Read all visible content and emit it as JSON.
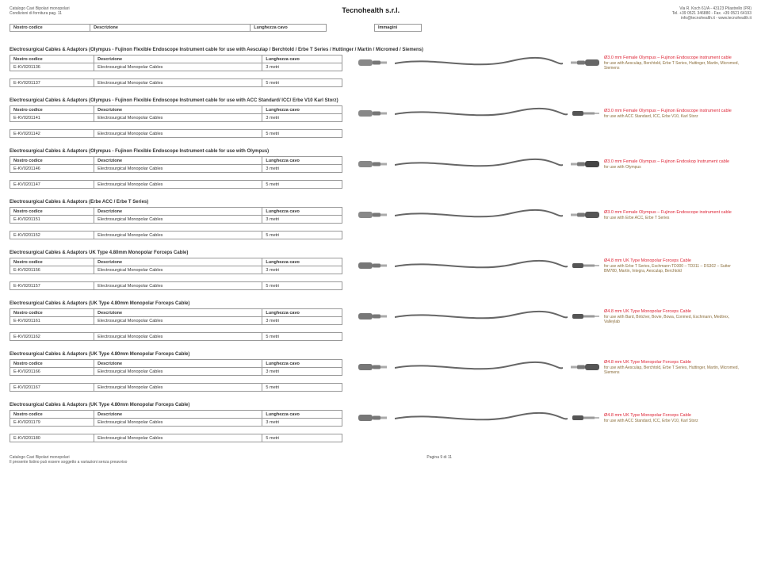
{
  "header": {
    "left_line1": "Catalogo Cavi Bipolari monopolari",
    "left_line2": "Condizioni di fornitura pag. 11",
    "center": "Tecnohealth s.r.l.",
    "right_line1": "Via R. Koch 61/A - 43123 Pilastrello (PR)",
    "right_line2": "Tel. +39 0521 346880 - Fax. +39 0521 64193",
    "right_line3": "info@tecnohealth.it - www.tecnohealth.it"
  },
  "top_table": {
    "col1": "Nostro codice",
    "col2": "Descrizione",
    "col3": "Lunghezza cavo",
    "col4": "Immagini"
  },
  "common": {
    "th_code": "Nostro codice",
    "th_desc": "Descrizione",
    "th_len": "Lunghezza cavo",
    "desc_row": "Electrosurgical Monopolar Cables",
    "len3": "3 metri",
    "len5": "5 metri"
  },
  "sections": [
    {
      "title": "Electrosurgical Cables & Adaptors (Olympus - Fujinon Flexible Endoscope Instrument cable for use with Aesculap / Berchtold / Erbe T Series / Huttinger / Martin / Micromed / Siemens)",
      "rows": [
        {
          "code": "E-KV0201136"
        },
        {
          "code": "E-KV0201137"
        }
      ],
      "caption_title": "Ø3.0 mm Female Olympus – Fujinon Endoscope instrument cable",
      "caption_sub": "for use with Aesculap, Berchtold, Erbe T Series, Huttinger, Martin, Micromed, Siemens",
      "left_color": "#888",
      "right_color": "#666",
      "right_shape": "plug"
    },
    {
      "title": "Electrosurgical Cables & Adaptors (Olympus - Fujinon Flexible Endoscope Instrument cable for use with ACC Standard/ ICC/ Erbe V10 Karl Storz)",
      "rows": [
        {
          "code": "E-KV0201141"
        },
        {
          "code": "E-KV0201142"
        }
      ],
      "caption_title": "Ø3.0 mm Female Olympus – Fujinon Endoscope instrument cable",
      "caption_sub": "for use with ACC Standard, ICC, Erbe V10, Karl Storz",
      "left_color": "#888",
      "right_color": "#555",
      "right_shape": "pin"
    },
    {
      "title": "Electrosurgical Cables & Adaptors (Olympus - Fujinon Flexible Endoscope Instrument cable for use with Olympus)",
      "rows": [
        {
          "code": "E-KV0201146"
        },
        {
          "code": "E-KV0201147"
        }
      ],
      "caption_title": "Ø3.0 mm Female Olympus – Fujinon Endoskop Instrument cable",
      "caption_sub": "for use with Olympus",
      "left_color": "#888",
      "right_color": "#444",
      "right_shape": "plug"
    },
    {
      "title": "Electrosurgical Cables & Adaptors (Erbe ACC / Erbe T Series)",
      "rows": [
        {
          "code": "E-KV0201151"
        },
        {
          "code": "E-KV0201152"
        }
      ],
      "caption_title": "Ø3.0 mm Female Olympus – Fujinon Endoscope instrument cable",
      "caption_sub": "for use with Erbe ACC, Erbe T Series",
      "left_color": "#888",
      "right_color": "#555",
      "right_shape": "plug"
    },
    {
      "title": "Electrosurgical Cables & Adaptors UK Type 4.80mm Monopolar Forceps Cable)",
      "rows": [
        {
          "code": "E-KV0201156"
        },
        {
          "code": "E-KV0201157"
        }
      ],
      "caption_title": "Ø4.8 mm UK Type Monopolar Forceps Cable",
      "caption_sub": "for use with Erbe T Series, Eschmann TD300 – TD311 – DS302 – Sutter BM780, Martin, Integra, Aesculap, Berchtold",
      "left_color": "#777",
      "right_color": "#555",
      "right_shape": "pin"
    },
    {
      "title": "Electrosurgical Cables & Adaptors (UK Type 4.80mm Monopolar Forceps Cable)",
      "rows": [
        {
          "code": "E-KV0201161"
        },
        {
          "code": "E-KV0201162"
        }
      ],
      "caption_title": "Ø4.8 mm UK Type Monopolar Forceps Cable",
      "caption_sub": "for use with Bard, Birtcher, Bovie, Bowa, Conmed, Eschmann, Medtrex, Valleylab",
      "left_color": "#777",
      "right_color": "#555",
      "right_shape": "pin"
    },
    {
      "title": "Electrosurgical Cables & Adaptors (UK Type 4.80mm Monopolar Forceps Cable)",
      "rows": [
        {
          "code": "E-KV0201166"
        },
        {
          "code": "E-KV0201167"
        }
      ],
      "caption_title": "Ø4.8 mm UK Type Monopolar Forceps Cable",
      "caption_sub": "for use with Aesculap, Berchtold, Erbe T Series, Huttinger, Martin, Micromed, Siemens",
      "left_color": "#777",
      "right_color": "#555",
      "right_shape": "plug"
    },
    {
      "title": "Electrosurgical Cables & Adaptors (UK Type 4.80mm Monopolar Forceps Cable)",
      "rows": [
        {
          "code": "E-KV0201179"
        },
        {
          "code": "E-KV0201180"
        }
      ],
      "caption_title": "Ø4.8 mm UK Type Monopolar Forceps Cable",
      "caption_sub": "for use with ACC Standard, ICC, Erbe V10, Karl Storz",
      "left_color": "#777",
      "right_color": "#555",
      "right_shape": "pin"
    }
  ],
  "footer": {
    "left1": "Catalogo Cavi Bipolari monopolari",
    "left2": "Il presente listino può essere soggetto a variazioni senza preavviso",
    "center": "Pagina 9 di 11"
  }
}
